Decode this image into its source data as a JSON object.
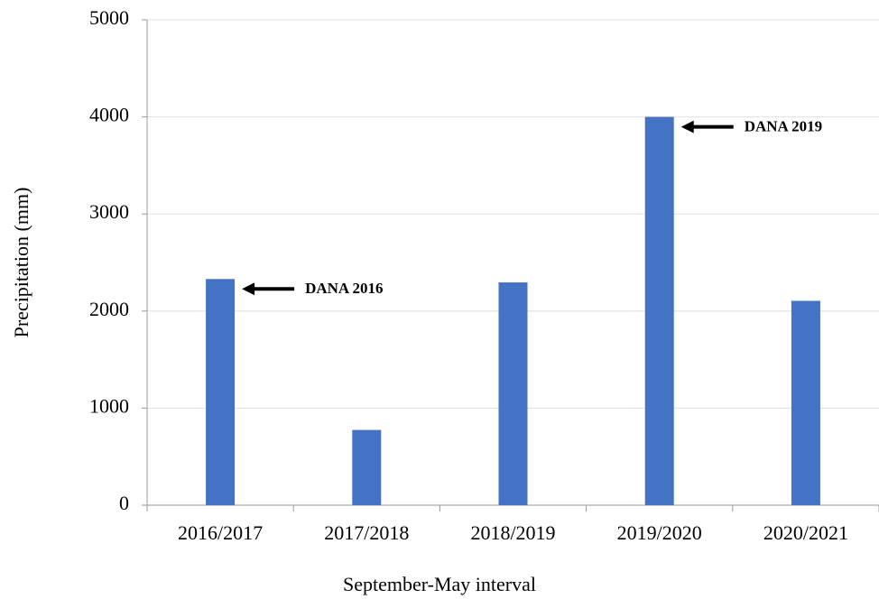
{
  "chart_data": {
    "type": "bar",
    "x_label": "September-May interval",
    "y_label": "Precipitation (mm)",
    "categories": [
      "2016/2017",
      "2017/2018",
      "2018/2019",
      "2019/2020",
      "2020/2021"
    ],
    "values": [
      2330,
      775,
      2295,
      4000,
      2105
    ],
    "color": "#4472c4",
    "ylim": [
      0,
      5000
    ],
    "yticks": [
      0,
      1000,
      2000,
      3000,
      4000,
      5000
    ],
    "grid": true,
    "annotations": [
      {
        "text": "DANA 2016",
        "x": "2016/2017"
      },
      {
        "text": "DANA 2019",
        "x": "2019/2020"
      }
    ]
  }
}
